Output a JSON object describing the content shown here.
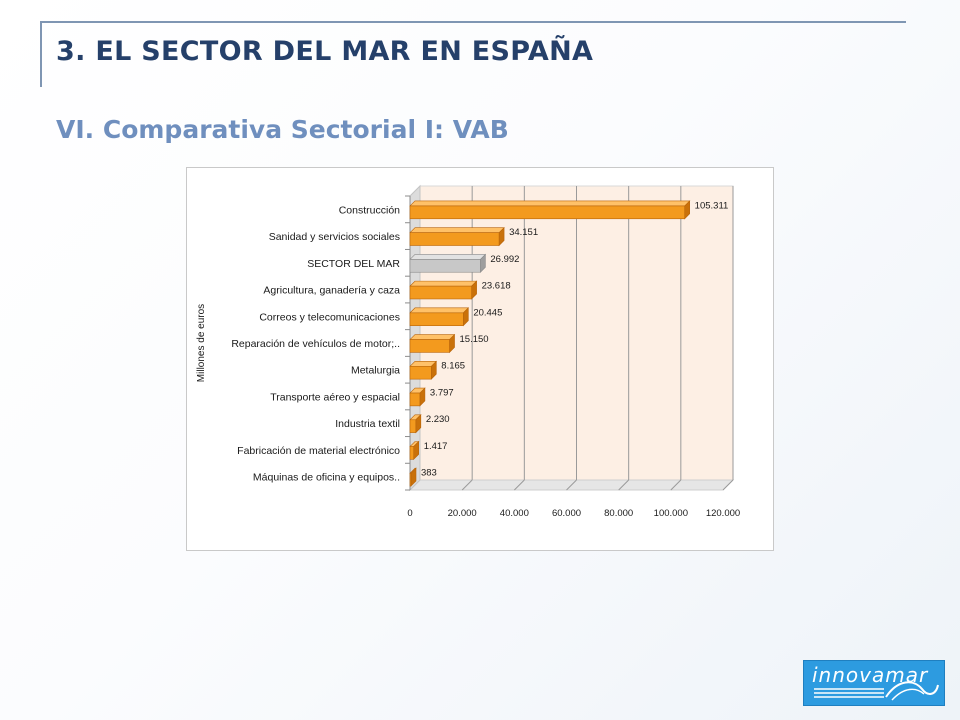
{
  "slide": {
    "title": "3. EL SECTOR DEL MAR EN ESPAÑA",
    "subtitle": "VI. Comparativa Sectorial I: VAB"
  },
  "logo": {
    "text": "innovamar"
  },
  "colors": {
    "title": "#25406a",
    "subtitle": "#6f8fbe",
    "bar_orange": "#f39a1e",
    "bar_highlight": "#c8c8c8",
    "plot_background": "#fdefe4"
  },
  "chart_data": {
    "type": "bar",
    "orientation": "horizontal",
    "ylabel": "Millones de euros",
    "categories": [
      "Construcción",
      "Sanidad y servicios sociales",
      "SECTOR DEL MAR",
      "Agricultura, ganadería y caza",
      "Correos y telecomunicaciones",
      "Reparación de vehículos de motor;..",
      "Metalurgia",
      "Transporte aéreo y espacial",
      "Industria textil",
      "Fabricación de material electrónico",
      "Máquinas de oficina y equipos.."
    ],
    "values": [
      105311,
      34151,
      26992,
      23618,
      20445,
      15150,
      8165,
      3797,
      2230,
      1417,
      383
    ],
    "value_labels": [
      "105.311",
      "34.151",
      "26.992",
      "23.618",
      "20.445",
      "15.150",
      "8.165",
      "3.797",
      "2.230",
      "1.417",
      "383"
    ],
    "highlight_category": "SECTOR DEL MAR",
    "xlim": [
      0,
      120000
    ],
    "xticks": [
      0,
      20000,
      40000,
      60000,
      80000,
      100000,
      120000
    ],
    "xtick_labels": [
      "0",
      "20.000",
      "40.000",
      "60.000",
      "80.000",
      "100.000",
      "120.000"
    ],
    "grid": true,
    "three_d": true
  }
}
